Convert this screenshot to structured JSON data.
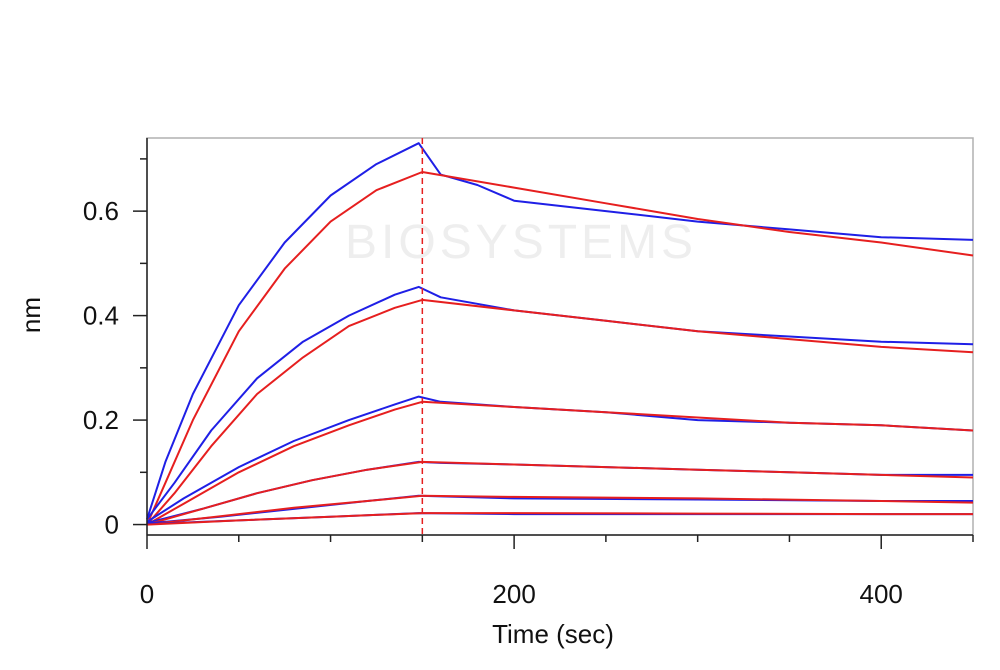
{
  "chart_data": {
    "type": "line",
    "xlabel": "Time (sec)",
    "ylabel": "nm",
    "xlim": [
      0,
      450
    ],
    "ylim": [
      -0.02,
      0.74
    ],
    "x_ticks": [
      0,
      200,
      400
    ],
    "y_ticks": [
      0,
      0.2,
      0.4,
      0.6
    ],
    "grid": false,
    "legend": "none",
    "dissociation_start": 150,
    "colors": {
      "measured": "#1f1fe6",
      "fit": "#e61f1f",
      "marker": "#e61f1f"
    },
    "watermark_text": "BIOSYSTEMS",
    "series": [
      {
        "role": "measured",
        "points": [
          [
            0,
            0.01
          ],
          [
            10,
            0.12
          ],
          [
            25,
            0.25
          ],
          [
            50,
            0.42
          ],
          [
            75,
            0.54
          ],
          [
            100,
            0.63
          ],
          [
            125,
            0.69
          ],
          [
            148,
            0.73
          ],
          [
            160,
            0.67
          ],
          [
            180,
            0.65
          ],
          [
            200,
            0.62
          ],
          [
            250,
            0.6
          ],
          [
            300,
            0.58
          ],
          [
            350,
            0.565
          ],
          [
            400,
            0.55
          ],
          [
            450,
            0.545
          ]
        ]
      },
      {
        "role": "fit",
        "points": [
          [
            0,
            0
          ],
          [
            10,
            0.08
          ],
          [
            25,
            0.2
          ],
          [
            50,
            0.37
          ],
          [
            75,
            0.49
          ],
          [
            100,
            0.58
          ],
          [
            125,
            0.64
          ],
          [
            150,
            0.675
          ],
          [
            200,
            0.645
          ],
          [
            250,
            0.615
          ],
          [
            300,
            0.585
          ],
          [
            350,
            0.56
          ],
          [
            400,
            0.54
          ],
          [
            450,
            0.515
          ]
        ]
      },
      {
        "role": "measured",
        "points": [
          [
            0,
            0.01
          ],
          [
            15,
            0.08
          ],
          [
            35,
            0.18
          ],
          [
            60,
            0.28
          ],
          [
            85,
            0.35
          ],
          [
            110,
            0.4
          ],
          [
            135,
            0.44
          ],
          [
            148,
            0.455
          ],
          [
            160,
            0.435
          ],
          [
            200,
            0.41
          ],
          [
            250,
            0.39
          ],
          [
            300,
            0.37
          ],
          [
            350,
            0.36
          ],
          [
            400,
            0.35
          ],
          [
            450,
            0.345
          ]
        ]
      },
      {
        "role": "fit",
        "points": [
          [
            0,
            0
          ],
          [
            15,
            0.06
          ],
          [
            35,
            0.15
          ],
          [
            60,
            0.25
          ],
          [
            85,
            0.32
          ],
          [
            110,
            0.38
          ],
          [
            135,
            0.415
          ],
          [
            150,
            0.43
          ],
          [
            200,
            0.41
          ],
          [
            250,
            0.39
          ],
          [
            300,
            0.37
          ],
          [
            350,
            0.355
          ],
          [
            400,
            0.34
          ],
          [
            450,
            0.33
          ]
        ]
      },
      {
        "role": "measured",
        "points": [
          [
            0,
            0.005
          ],
          [
            20,
            0.05
          ],
          [
            50,
            0.11
          ],
          [
            80,
            0.16
          ],
          [
            110,
            0.2
          ],
          [
            135,
            0.23
          ],
          [
            148,
            0.245
          ],
          [
            160,
            0.235
          ],
          [
            200,
            0.225
          ],
          [
            250,
            0.215
          ],
          [
            300,
            0.2
          ],
          [
            350,
            0.195
          ],
          [
            400,
            0.19
          ],
          [
            450,
            0.18
          ]
        ]
      },
      {
        "role": "fit",
        "points": [
          [
            0,
            0
          ],
          [
            20,
            0.04
          ],
          [
            50,
            0.1
          ],
          [
            80,
            0.15
          ],
          [
            110,
            0.19
          ],
          [
            135,
            0.22
          ],
          [
            150,
            0.235
          ],
          [
            200,
            0.225
          ],
          [
            250,
            0.215
          ],
          [
            300,
            0.205
          ],
          [
            350,
            0.195
          ],
          [
            400,
            0.19
          ],
          [
            450,
            0.18
          ]
        ]
      },
      {
        "role": "measured",
        "points": [
          [
            0,
            0.003
          ],
          [
            30,
            0.03
          ],
          [
            60,
            0.06
          ],
          [
            90,
            0.085
          ],
          [
            120,
            0.105
          ],
          [
            148,
            0.12
          ],
          [
            160,
            0.118
          ],
          [
            200,
            0.115
          ],
          [
            250,
            0.11
          ],
          [
            300,
            0.105
          ],
          [
            350,
            0.1
          ],
          [
            400,
            0.095
          ],
          [
            450,
            0.095
          ]
        ]
      },
      {
        "role": "fit",
        "points": [
          [
            0,
            0
          ],
          [
            30,
            0.03
          ],
          [
            60,
            0.06
          ],
          [
            90,
            0.085
          ],
          [
            120,
            0.105
          ],
          [
            150,
            0.12
          ],
          [
            200,
            0.115
          ],
          [
            250,
            0.11
          ],
          [
            300,
            0.105
          ],
          [
            350,
            0.1
          ],
          [
            400,
            0.095
          ],
          [
            450,
            0.09
          ]
        ]
      },
      {
        "role": "measured",
        "points": [
          [
            0,
            0.002
          ],
          [
            40,
            0.015
          ],
          [
            80,
            0.03
          ],
          [
            120,
            0.045
          ],
          [
            148,
            0.055
          ],
          [
            200,
            0.05
          ],
          [
            300,
            0.048
          ],
          [
            400,
            0.045
          ],
          [
            450,
            0.045
          ]
        ]
      },
      {
        "role": "fit",
        "points": [
          [
            0,
            0
          ],
          [
            40,
            0.016
          ],
          [
            80,
            0.032
          ],
          [
            120,
            0.045
          ],
          [
            150,
            0.055
          ],
          [
            200,
            0.053
          ],
          [
            300,
            0.05
          ],
          [
            400,
            0.045
          ],
          [
            450,
            0.042
          ]
        ]
      },
      {
        "role": "measured",
        "points": [
          [
            0,
            0.001
          ],
          [
            50,
            0.008
          ],
          [
            100,
            0.015
          ],
          [
            148,
            0.022
          ],
          [
            200,
            0.02
          ],
          [
            300,
            0.02
          ],
          [
            400,
            0.02
          ],
          [
            450,
            0.02
          ]
        ]
      },
      {
        "role": "fit",
        "points": [
          [
            0,
            0
          ],
          [
            50,
            0.008
          ],
          [
            100,
            0.015
          ],
          [
            150,
            0.022
          ],
          [
            200,
            0.022
          ],
          [
            300,
            0.021
          ],
          [
            400,
            0.02
          ],
          [
            450,
            0.02
          ]
        ]
      }
    ]
  }
}
